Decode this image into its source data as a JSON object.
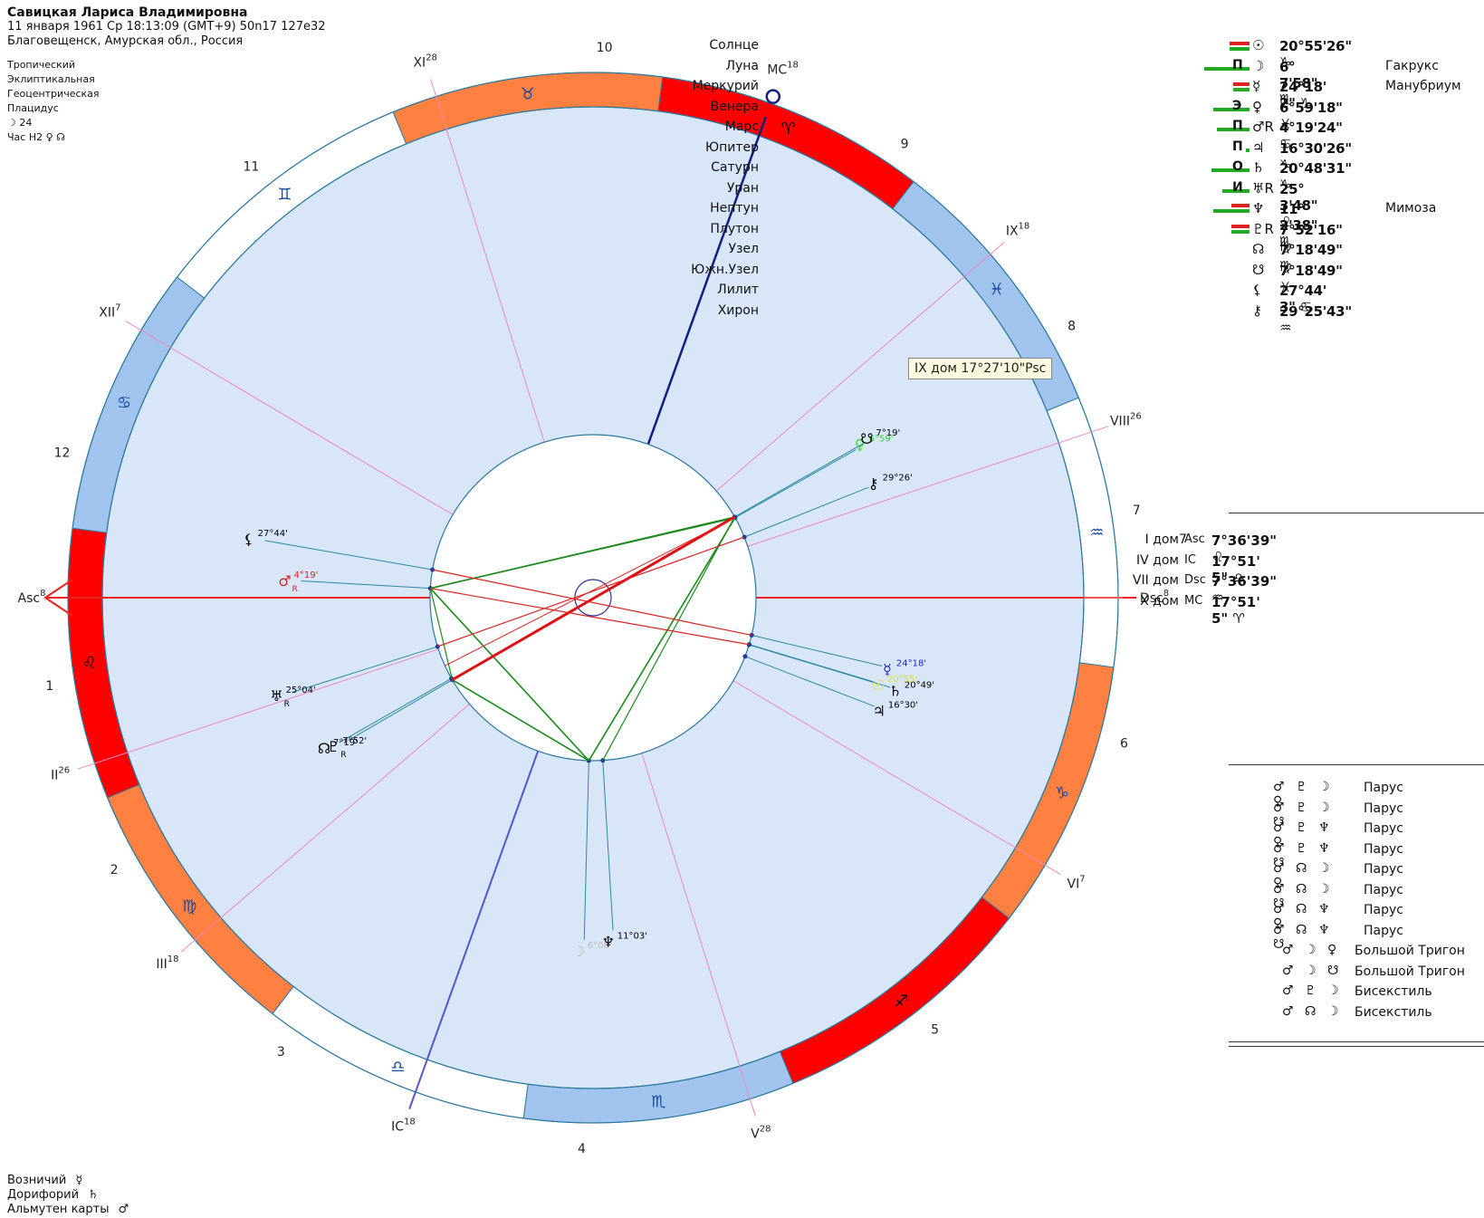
{
  "header": {
    "name": "Савицкая Лариса Владимировна",
    "datetime": "11 января 1961  Ср  18:13:09 (GMT+9) 50n17  127e32",
    "place": "Благовещенск, Амурская обл., Россия"
  },
  "settings": [
    "Тропический",
    "Эклиптикальная",
    "Геоцентрическая",
    "Плацидус",
    "☽  24",
    "Час Н2  ♀  ☊"
  ],
  "footer": [
    {
      "label": "Возничий",
      "symbol": "☿"
    },
    {
      "label": "Дорифорий",
      "symbol": "♄"
    },
    {
      "label": "Альмутен карты",
      "symbol": "♂"
    }
  ],
  "planets": [
    {
      "name": "Солнце",
      "letter": "",
      "glyph": "☉",
      "pos": "20°55'26\" ♑",
      "star": "",
      "green": 0,
      "red": 22
    },
    {
      "name": "Луна",
      "letter": "П",
      "glyph": "☽",
      "pos": "6° 7'58\" ♏",
      "star": "Гакрукс",
      "green": 50,
      "red": 0
    },
    {
      "name": "Меркурий",
      "letter": "",
      "glyph": "☿",
      "pos": "24°18' 2\" ♑",
      "star": "Манубриум",
      "green": 0,
      "red": 18
    },
    {
      "name": "Венера",
      "letter": "Э",
      "glyph": "♀",
      "pos": "6°59'18\" ♓",
      "star": "",
      "green": 40,
      "red": 0
    },
    {
      "name": "Марс",
      "letter": "П",
      "glyph": "♂R",
      "pos": "4°19'24\" ♋",
      "star": "",
      "green": 36,
      "red": 0
    },
    {
      "name": "Юпитер",
      "letter": "П",
      "glyph": "♃",
      "pos": "16°30'26\" ♑",
      "star": "",
      "green": 4,
      "red": 0
    },
    {
      "name": "Сатурн",
      "letter": "О",
      "glyph": "♄",
      "pos": "20°48'31\" ♑",
      "star": "",
      "green": 42,
      "red": 0
    },
    {
      "name": "Уран",
      "letter": "И",
      "glyph": "♅R",
      "pos": "25° 3'48\" ♌",
      "star": "",
      "green": 30,
      "red": 0
    },
    {
      "name": "Нептун",
      "letter": "",
      "glyph": "♆",
      "pos": "11° 2'38\" ♏",
      "star": "Мимоза",
      "green": 40,
      "red": 20
    },
    {
      "name": "Плутон",
      "letter": "",
      "glyph": "♇R",
      "pos": "7°52'16\" ♍",
      "star": "",
      "green": 20,
      "red": 20
    },
    {
      "name": "Узел",
      "letter": "",
      "glyph": "☊",
      "pos": "7°18'49\" ♍",
      "star": "",
      "green": 0,
      "red": 0
    },
    {
      "name": "Южн.Узел",
      "letter": "",
      "glyph": "☋",
      "pos": "7°18'49\" ♓",
      "star": "",
      "green": 0,
      "red": 0
    },
    {
      "name": "Лилит",
      "letter": "",
      "glyph": "⚸",
      "pos": "27°44' 3\" ♋",
      "star": "",
      "green": 0,
      "red": 0
    },
    {
      "name": "Хирон",
      "letter": "",
      "glyph": "⚷",
      "pos": "29°25'43\" ♒",
      "star": "",
      "green": 0,
      "red": 0
    }
  ],
  "houses": [
    {
      "name": "I дом",
      "glyph": "Asc",
      "pos": "7°36'39\" ♌"
    },
    {
      "name": "IV дом",
      "glyph": "IC",
      "pos": "17°51' 5\" ♎"
    },
    {
      "name": "VII дом",
      "glyph": "Dsc",
      "pos": "7°36'39\" ♒"
    },
    {
      "name": "X дом",
      "glyph": "MC",
      "pos": "17°51' 5\" ♈"
    }
  ],
  "house_number_above_table": "7",
  "aspects": [
    {
      "symbols": "♂ ♇ ☽ ♀",
      "name": "Парус"
    },
    {
      "symbols": "♂ ♇ ☽ ☋",
      "name": "Парус"
    },
    {
      "symbols": "♂ ♇ ♆ ♀",
      "name": "Парус"
    },
    {
      "symbols": "♂ ♇ ♆ ☋",
      "name": "Парус"
    },
    {
      "symbols": "♂ ☊ ☽ ♀",
      "name": "Парус"
    },
    {
      "symbols": "♂ ☊ ☽ ☋",
      "name": "Парус"
    },
    {
      "symbols": "♂ ☊ ♆ ♀",
      "name": "Парус"
    },
    {
      "symbols": "♂ ☊ ♆ ☋",
      "name": "Парус"
    },
    {
      "symbols": "♂ ☽ ♀",
      "name": "Большой Тригон"
    },
    {
      "symbols": "♂ ☽ ☋",
      "name": "Большой Тригон"
    },
    {
      "symbols": "♂ ♇ ☽",
      "name": "Бисекстиль"
    },
    {
      "symbols": "♂ ☊ ☽",
      "name": "Бисекстиль"
    }
  ],
  "tooltip": "IX дом 17°27'10\"Psc",
  "wheel": {
    "house_numbers": [
      "1",
      "2",
      "3",
      "4",
      "5",
      "6",
      "7",
      "8",
      "9",
      "10",
      "11",
      "12"
    ],
    "cusp_labels": [
      {
        "text": "Asc",
        "sup": "8"
      },
      {
        "text": "II",
        "sup": "26"
      },
      {
        "text": "III",
        "sup": "18"
      },
      {
        "text": "IC",
        "sup": "18"
      },
      {
        "text": "V",
        "sup": "28"
      },
      {
        "text": "VI",
        "sup": "7"
      },
      {
        "text": "Dsc",
        "sup": "8"
      },
      {
        "text": "VIII",
        "sup": "26"
      },
      {
        "text": "IX",
        "sup": "18"
      },
      {
        "text": "MC",
        "sup": "18"
      },
      {
        "text": "XI",
        "sup": "28"
      },
      {
        "text": "XII",
        "sup": "7"
      }
    ],
    "signs": [
      "♌",
      "♍",
      "♎",
      "♏",
      "♐",
      "♑",
      "♒",
      "♓",
      "♈",
      "♉",
      "♊",
      "♋"
    ],
    "sign_colors": [
      "#ff0000",
      "#ff8040",
      "#ffffff",
      "#a0c4ee",
      "#ff0000",
      "#ff8040",
      "#ffffff",
      "#a0c4ee",
      "#ff0000",
      "#ff8040",
      "#ffffff",
      "#a0c4ee"
    ],
    "planet_labels": [
      {
        "glyph": "♂",
        "text": "4°19'",
        "sub": "R",
        "color": "#dd2222"
      },
      {
        "glyph": "⚸",
        "text": "27°44'",
        "sub": "",
        "color": "#000000"
      },
      {
        "glyph": "♅",
        "text": "25°04'",
        "sub": "R",
        "color": "#000000"
      },
      {
        "glyph": "☊",
        "text": "7°19'",
        "sub": "",
        "color": "#000000"
      },
      {
        "glyph": "♇",
        "text": "7°52'",
        "sub": "R",
        "color": "#000000"
      },
      {
        "glyph": "☽",
        "text": "6°08'",
        "sub": "",
        "color": "#bbbbbb"
      },
      {
        "glyph": "♆",
        "text": "11°03'",
        "sub": "",
        "color": "#000000"
      },
      {
        "glyph": "♃",
        "text": "16°30'",
        "sub": "",
        "color": "#000000"
      },
      {
        "glyph": "♄",
        "text": "20°49'",
        "sub": "",
        "color": "#000000"
      },
      {
        "glyph": "☉",
        "text": "20°55'",
        "sub": "",
        "color": "#dddd33"
      },
      {
        "glyph": "☿",
        "text": "24°18'",
        "sub": "",
        "color": "#2222cc"
      },
      {
        "glyph": "⚷",
        "text": "29°26'",
        "sub": "",
        "color": "#000000"
      },
      {
        "glyph": "♀",
        "text": "6°59'",
        "sub": "",
        "color": "#33dd33"
      },
      {
        "glyph": "☋",
        "text": "7°19'",
        "sub": "",
        "color": "#000000"
      }
    ]
  }
}
